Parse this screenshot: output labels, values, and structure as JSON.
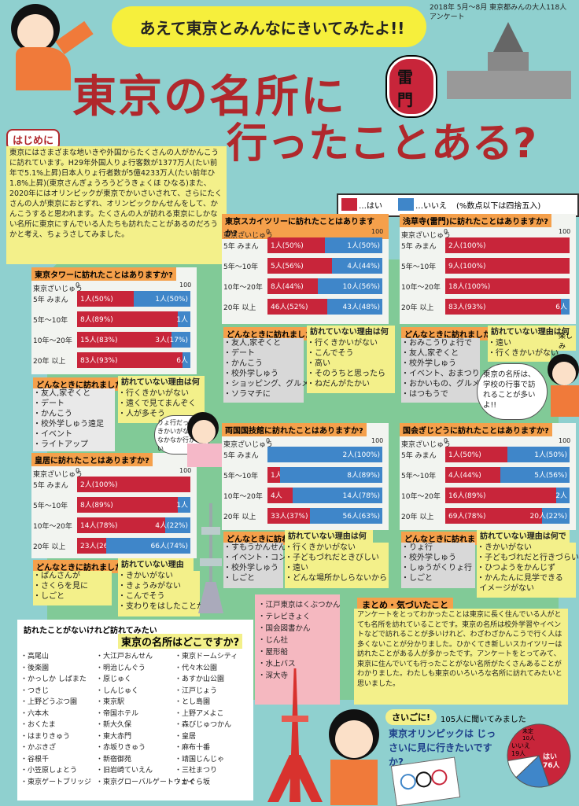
{
  "header": {
    "banner": "あえて東京とみんなにきいてみたよ!!",
    "survey_note": "2018年 5月〜8月 東京都みんの大人118人 アンケート",
    "title_line1": "東京の名所に",
    "title_line2": "行ったことある?",
    "badge": "雷門"
  },
  "intro": {
    "heading": "はじめに",
    "body": "東京にはさまざまな地いきや外国からたくさんの人がかんこうに訪れています。H29年外国人りょ行客数が1377万人(たい前年で5.1%上昇)日本人りょ行者数が5億4233万人(たい前年ひ1.8%上昇)(東京さんぎょうろうどうきょくほ ひなる)また、2020年にはオリンピックが東京でかいさいされて、さらにたくさんの人が東京におとずれ、オリンピックかんせんをして、かんこうすると思われます。たくさんの人が訪れる東京にしかない名所に東京にすんでいる人たちも訪れたことがあるのだろうかと考え、ちょうさしてみました。"
  },
  "legend": {
    "yes": "…はい",
    "no": "…いいえ",
    "note": "(%数点以下は四捨五入)"
  },
  "axis": {
    "zero": "0",
    "hundred": "100"
  },
  "age_labels": [
    "5年 みまん",
    "5年〜10年",
    "10年〜20年",
    "20年 以上"
  ],
  "resident_label": "東京ざいじゅう",
  "charts": [
    {
      "id": "tower",
      "question": "東京タワーに訪れたことはありますか?",
      "rows": [
        {
          "yes": 50,
          "no": 50,
          "yes_label": "1人(50%)",
          "no_label": "1人(50%)"
        },
        {
          "yes": 89,
          "no": 11,
          "yes_label": "8人(89%)",
          "no_label": "1人"
        },
        {
          "yes": 83,
          "no": 17,
          "yes_label": "15人(83%)",
          "no_label": "3人(17%)"
        },
        {
          "yes": 93,
          "no": 7,
          "yes_label": "83人(93%)",
          "no_label": "6人"
        }
      ]
    },
    {
      "id": "skytree",
      "question": "東京スカイツリーに訪れたことはありますか?",
      "rows": [
        {
          "yes": 50,
          "no": 50,
          "yes_label": "1人(50%)",
          "no_label": "1人(50%)"
        },
        {
          "yes": 56,
          "no": 44,
          "yes_label": "5人(56%)",
          "no_label": "4人(44%)"
        },
        {
          "yes": 44,
          "no": 56,
          "yes_label": "8人(44%)",
          "no_label": "10人(56%)"
        },
        {
          "yes": 52,
          "no": 48,
          "yes_label": "46人(52%)",
          "no_label": "43人(48%)"
        }
      ]
    },
    {
      "id": "asakusa",
      "question": "浅草寺(雷門)に訪れたことはありますか?",
      "rows": [
        {
          "yes": 100,
          "no": 0,
          "yes_label": "2人(100%)",
          "no_label": ""
        },
        {
          "yes": 100,
          "no": 0,
          "yes_label": "9人(100%)",
          "no_label": ""
        },
        {
          "yes": 100,
          "no": 0,
          "yes_label": "18人(100%)",
          "no_label": ""
        },
        {
          "yes": 93,
          "no": 7,
          "yes_label": "83人(93%)",
          "no_label": "6人"
        }
      ]
    },
    {
      "id": "palace",
      "question": "皇居に訪れたことはありますか?",
      "rows": [
        {
          "yes": 100,
          "no": 0,
          "yes_label": "2人(100%)",
          "no_label": ""
        },
        {
          "yes": 89,
          "no": 11,
          "yes_label": "8人(89%)",
          "no_label": "1人"
        },
        {
          "yes": 78,
          "no": 22,
          "yes_label": "14人(78%)",
          "no_label": "4人(22%)"
        },
        {
          "yes": 26,
          "no": 74,
          "yes_label": "23人(26%)",
          "no_label": "66人(74%)"
        }
      ]
    },
    {
      "id": "kokugikan",
      "question": "両国国技館に訪れたことはありますか?",
      "rows": [
        {
          "yes": 0,
          "no": 100,
          "yes_label": "",
          "no_label": "2人(100%)"
        },
        {
          "yes": 11,
          "no": 89,
          "yes_label": "1人",
          "no_label": "8人(89%)"
        },
        {
          "yes": 22,
          "no": 78,
          "yes_label": "4人",
          "no_label": "14人(78%)"
        },
        {
          "yes": 37,
          "no": 63,
          "yes_label": "33人(37%)",
          "no_label": "56人(63%)"
        }
      ]
    },
    {
      "id": "diet",
      "question": "国会ぎじどうに訪れたことはありますか?",
      "rows": [
        {
          "yes": 50,
          "no": 50,
          "yes_label": "1人(50%)",
          "no_label": "1人(50%)"
        },
        {
          "yes": 44,
          "no": 56,
          "yes_label": "4人(44%)",
          "no_label": "5人(56%)"
        },
        {
          "yes": 89,
          "no": 11,
          "yes_label": "16人(89%)",
          "no_label": "2人"
        },
        {
          "yes": 78,
          "no": 22,
          "yes_label": "69人(78%)",
          "no_label": "20人(22%)"
        }
      ]
    }
  ],
  "reasons": {
    "why_label": "どんなときに訪れましたか?",
    "whynot_label": "訪れていない理由は何ですか?",
    "tower_why": "・友人,家ぞくと\n・デート\n・かんこう\n・校外学しゅう遠足\n・イベント\n・ライトアップ",
    "tower_whynot": "・行くきかいがない\n・遠くで見てまんぞく\n・人が多そう",
    "skytree_why": "・友人,家ぞくと\n・デート\n・かんこう\n・校外学しゅう\n・ショッピング、グルメ\n・ソラマチに",
    "skytree_whynot": "・行くきかいがない\n・こんでそう\n・高い\n・そのうちと思ったら\n・ねだんがたかい",
    "asakusa_why": "・おみこうりょ行で\n・友人,家ぞくと\n・校外学しゅう\n・イベント、おまつり\n・おかいもの、グルメ\n・はつもうで",
    "asakusa_whynot": "・遠い\n・行くきかいがない",
    "palace_why": "・ぱんさんが\n・さくらを見に\n・しごと",
    "palace_whynot": "・きかいがない\n・きょうみがない\n・こんでそう\n・支わりをはしたことがある",
    "kokugikan_why": "・すもうかんせん\n・イベント・コンサート\n・校外学しゅう\n・しごと",
    "kokugikan_whynot": "・行くきかいがない\n・子どもづれだときびしい\n・遠い\n・どんな場所かしらないから",
    "diet_why": "・りょ行\n・校外学しゅう\n・しゅうがくりょ行\n・しごと",
    "diet_whynot": "・きかいがない\n・子どもづれだと行きづらい\n・ひつようをかんじず\n・かんたんに見学できる\n イメージがない"
  },
  "speech": {
    "mid": "りょ行だったらきかいがないとなかなか行かない",
    "right": "東京の名所は、学校の行事で訪れることが多いよ!!",
    "right_small": "楽しみ"
  },
  "places": {
    "heading_small": "訪れたことがないけれど訪れてみたい",
    "heading": "東京の名所はどこですか?",
    "col1": "・高尾山\n・後楽園\n・かっしか しばまた\n・つきじ\n・上野どうぶつ園\n・六本木\n・おくたま\n・はまりきゅう\n・かぶきざ\n・谷根千\n・小笠原しょとう\n・東京ゲートブリッジ",
    "col2": "・大江戸おんせん\n・明治じんぐう\n・原じゅく\n・しんじゅく\n・東京駅\n・帝国ホテル\n・新大久保\n・東大赤門\n・赤坂りきゅう\n・新宿御苑\n・旧岩崎ていえん\n・東京グローバルゲートウェイ",
    "col3": "・東京ドームシティ\n・代々木公園\n・あすか山公園\n・江戸じょう\n・とし島園\n・上野アメよこ\n・森びじゅつかん\n・皇居\n・麻布十番\n・靖国じんじゃ\n・三社まつり\n・かぐら坂",
    "col4": "・江戸東京はくぶつかん\n・テレビきょく\n・国会図書かん\n・じん社\n・屋形船\n・水上バス\n・深大寺"
  },
  "summary": {
    "heading": "まとめ・気づいたこと",
    "body": "アンケートをとってわかったことは東京に長く住んでいる人がとても名所を訪れていることです。東京の名所は校外学習やイベントなどで訪れることが多いけれど、わざわざかんこうで行く人は多くないことが分かりました。ひかくてき新しいスカイツリーは訪れたことがある人が多かったです。アンケートをとってみて、東京に住んでいても行ったことがない名所がたくさんあることがわかりました。わたしも東京のいろいろな名所に訪れてみたいと思いました。"
  },
  "closing": {
    "heading": "さいごに!",
    "asked": "105人に聞いてみました",
    "question": "東京オリンピックは じっさいに見に行きたいですか?",
    "pie": {
      "yes": 76,
      "no": 19,
      "other": 10,
      "yes_label": "はい 76人",
      "no_label": "いいえ 19人",
      "other_label": "未定 10人"
    }
  },
  "colors": {
    "yes": "#c8253a",
    "no": "#3f86c9",
    "bg": "#8fd0cf",
    "highlight": "#f3f08a",
    "accent": "#f5a04b"
  }
}
